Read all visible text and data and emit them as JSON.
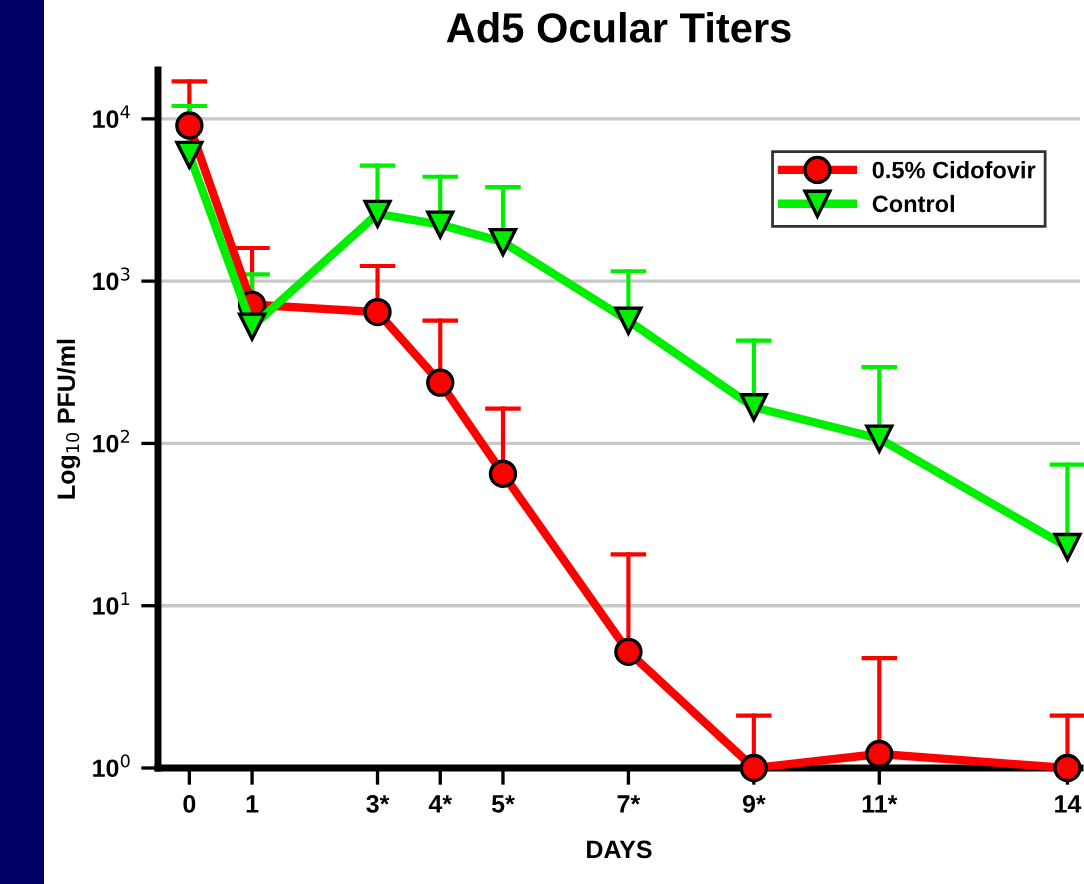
{
  "chart_data": {
    "type": "line",
    "title": "Ad5 Ocular Titers",
    "xlabel": "DAYS",
    "ylabel": "Log$_{10}$ PFU/ml",
    "x": [
      0,
      1,
      3,
      4,
      5,
      7,
      9,
      11,
      14
    ],
    "series": [
      {
        "name": "0.5% Cidofovir",
        "color": "#ff0000",
        "marker": "circle",
        "values": [
          9100,
          716,
          645,
          237,
          65,
          5.2,
          1,
          1.22,
          1
        ],
        "errors": [
          [
            9100,
            17000
          ],
          [
            716,
            1600
          ],
          [
            645,
            1240
          ],
          [
            237,
            571
          ],
          [
            65,
            164
          ],
          [
            5.2,
            20.7
          ],
          [
            1,
            2.1
          ],
          [
            1.22,
            4.75
          ],
          [
            1,
            2.1
          ]
        ]
      },
      {
        "name": "Control",
        "color": "#00ee00",
        "marker": "triangle",
        "values": [
          6000,
          525,
          2600,
          2230,
          1740,
          570,
          167,
          107,
          23
        ],
        "errors": [
          [
            6000,
            12000
          ],
          [
            525,
            1100
          ],
          [
            2600,
            5150
          ],
          [
            2230,
            4400
          ],
          [
            1740,
            3800
          ],
          [
            570,
            1150
          ],
          [
            167,
            430
          ],
          [
            107,
            295
          ],
          [
            23,
            74
          ]
        ]
      }
    ],
    "log": "y",
    "ylim": [
      1,
      20000
    ],
    "yticks": [
      {
        "value": 1,
        "label": "10$^{0}$"
      },
      {
        "value": 10,
        "label": "10$^{1}$"
      },
      {
        "value": 100,
        "label": "10$^{2}$"
      },
      {
        "value": 1000,
        "label": "10$^{3}$"
      },
      {
        "value": 10000,
        "label": "10$^{4}$"
      }
    ],
    "xlim": [
      -0.5,
      14.2
    ],
    "xticks": [
      0,
      1,
      {
        "value": 3,
        "label": "3*"
      },
      {
        "value": 4,
        "label": "4*"
      },
      {
        "value": 5,
        "label": "5*"
      },
      {
        "value": 7,
        "label": "7*"
      },
      {
        "value": 9,
        "label": "9*"
      },
      {
        "value": 11,
        "label": "11*"
      },
      14
    ],
    "grid": "y",
    "legend": "top right",
    "line_style": "solid"
  }
}
